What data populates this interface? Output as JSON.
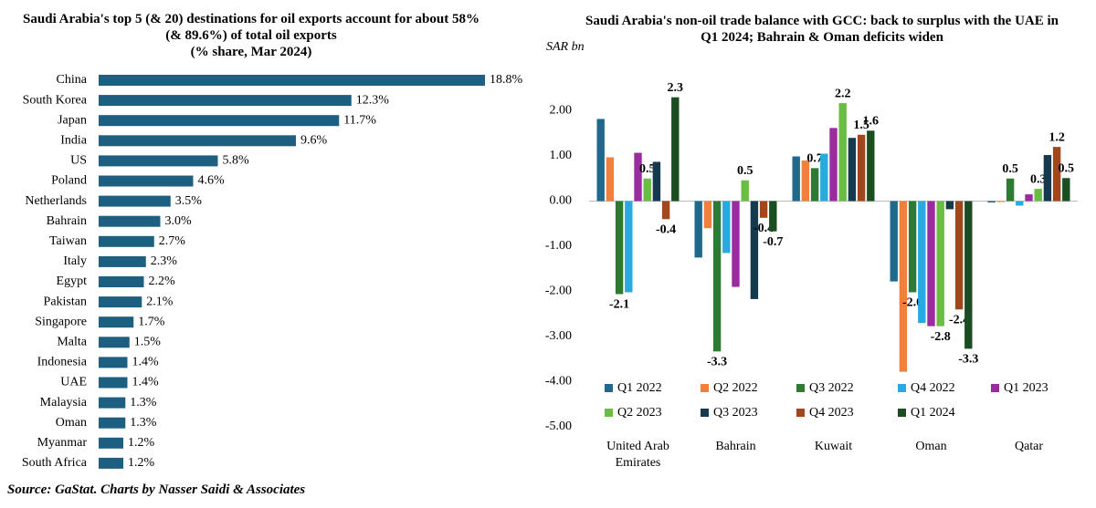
{
  "chart_data": [
    {
      "type": "bar",
      "orientation": "horizontal",
      "title": "Saudi Arabia's top 5 (& 20) destinations for oil exports account for about 58% (& 89.6%) of total oil exports",
      "subtitle": "(% share, Mar 2024)",
      "color": "#1d5f80",
      "categories": [
        "China",
        "South Korea",
        "Japan",
        "India",
        "US",
        "Poland",
        "Netherlands",
        "Bahrain",
        "Taiwan",
        "Italy",
        "Egypt",
        "Pakistan",
        "Singapore",
        "Malta",
        "Indonesia",
        "UAE",
        "Malaysia",
        "Oman",
        "Myanmar",
        "South Africa"
      ],
      "values": [
        18.8,
        12.3,
        11.7,
        9.6,
        5.8,
        4.6,
        3.5,
        3.0,
        2.7,
        2.3,
        2.2,
        2.1,
        1.7,
        1.5,
        1.4,
        1.4,
        1.3,
        1.3,
        1.2,
        1.2
      ],
      "value_labels": [
        "18.8%",
        "12.3%",
        "11.7%",
        "9.6%",
        "5.8%",
        "4.6%",
        "3.5%",
        "3.0%",
        "2.7%",
        "2.3%",
        "2.2%",
        "2.1%",
        "1.7%",
        "1.5%",
        "1.4%",
        "1.4%",
        "1.3%",
        "1.3%",
        "1.2%",
        "1.2%"
      ]
    },
    {
      "type": "bar",
      "title": "Saudi Arabia's non-oil trade balance with GCC: back to surplus with the UAE in Q1 2024; Bahrain & Oman deficits widen",
      "ylabel": "SAR bn",
      "categories": [
        "United Arab Emirates",
        "Bahrain",
        "Kuwait",
        "Oman",
        "Qatar"
      ],
      "ylim": [
        -5,
        3
      ],
      "yticks": [
        {
          "value": -5,
          "label": "-5.00"
        },
        {
          "value": -4,
          "label": "-4.00"
        },
        {
          "value": -3,
          "label": "-3.00"
        },
        {
          "value": -2,
          "label": "-2.00"
        },
        {
          "value": -1,
          "label": "-1.00"
        },
        {
          "value": 0,
          "label": "0.00"
        },
        {
          "value": 1,
          "label": "1.00"
        },
        {
          "value": 2,
          "label": "2.00"
        }
      ],
      "grid": false,
      "legend": "bottom",
      "series": [
        {
          "name": "Q1 2022",
          "color": "#1f6a8c",
          "values": [
            1.82,
            -1.25,
            0.99,
            -1.78,
            -0.03
          ],
          "value_labels": [
            null,
            null,
            null,
            null,
            null
          ]
        },
        {
          "name": "Q2 2022",
          "color": "#f0803c",
          "values": [
            0.97,
            -0.6,
            0.9,
            -3.78,
            -0.02
          ],
          "value_labels": [
            null,
            null,
            null,
            null,
            null
          ]
        },
        {
          "name": "Q3 2022",
          "color": "#2d7a33",
          "values": [
            -2.06,
            -3.33,
            0.73,
            -2.02,
            0.5
          ],
          "value_labels": [
            "-2.1",
            "-3.3",
            "0.7",
            "-2.0",
            "0.5"
          ]
        },
        {
          "name": "Q4 2022",
          "color": "#2aa9e0",
          "values": [
            -2.02,
            -1.15,
            1.05,
            -2.7,
            -0.1
          ],
          "value_labels": [
            null,
            null,
            null,
            null,
            null
          ]
        },
        {
          "name": "Q1 2023",
          "color": "#9b2c9f",
          "values": [
            1.07,
            -1.9,
            1.62,
            -2.77,
            0.15
          ],
          "value_labels": [
            null,
            null,
            null,
            null,
            null
          ]
        },
        {
          "name": "Q2 2023",
          "color": "#68bd42",
          "values": [
            0.5,
            0.46,
            2.17,
            -2.77,
            0.27
          ],
          "value_labels": [
            "0.5",
            "0.5",
            "2.2",
            "-2.8",
            "0.3"
          ]
        },
        {
          "name": "Q3 2023",
          "color": "#163a4d",
          "values": [
            0.87,
            -2.17,
            1.4,
            -0.18,
            1.02
          ],
          "value_labels": [
            null,
            null,
            null,
            null,
            null
          ]
        },
        {
          "name": "Q4 2023",
          "color": "#a2461c",
          "values": [
            -0.4,
            -0.37,
            1.47,
            -2.4,
            1.2
          ],
          "value_labels": [
            "-0.4",
            "-0.4",
            "1.5",
            "-2.4",
            "1.2"
          ]
        },
        {
          "name": "Q1 2024",
          "color": "#1a4d20",
          "values": [
            2.3,
            -0.67,
            1.56,
            -3.27,
            0.51
          ],
          "value_labels": [
            "2.3",
            "-0.7",
            "1.6",
            "-3.3",
            "0.5"
          ]
        }
      ]
    }
  ],
  "source": "Source: GaStat. Charts by Nasser Saidi & Associates"
}
